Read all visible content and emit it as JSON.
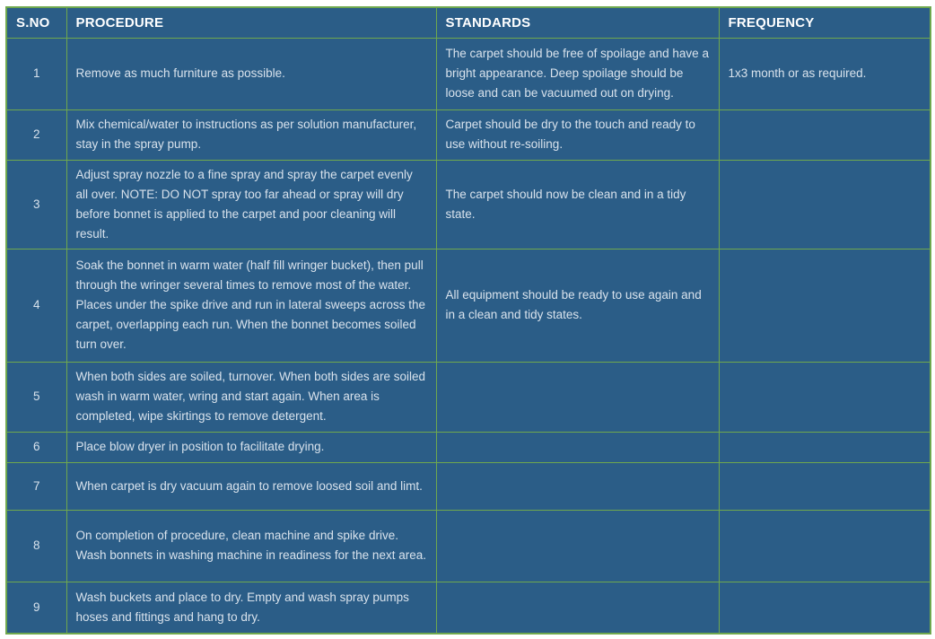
{
  "table": {
    "columns": [
      {
        "key": "sno",
        "label": "S.NO"
      },
      {
        "key": "procedure",
        "label": "PROCEDURE"
      },
      {
        "key": "standards",
        "label": "STANDARDS"
      },
      {
        "key": "frequency",
        "label": "FREQUENCY"
      }
    ],
    "rows": [
      {
        "sno": "1",
        "procedure": "Remove as much furniture as possible.",
        "standards": "The carpet should be free of spoilage and have a bright appearance. Deep spoilage should be loose and can be vacuumed out on drying.",
        "frequency": "1x3 month or as required."
      },
      {
        "sno": "2",
        "procedure": "Mix chemical/water to instructions as per solution manufacturer, stay in the spray pump.",
        "standards": "Carpet should be dry to the touch and ready to use without re-soiling.",
        "frequency": ""
      },
      {
        "sno": "3",
        "procedure": "Adjust spray nozzle to a fine spray and spray the carpet evenly all over. NOTE: DO NOT spray too far ahead or spray will dry before bonnet is applied to the carpet and poor cleaning will result.",
        "standards": "The carpet should now be clean and in a tidy state.",
        "frequency": ""
      },
      {
        "sno": "4",
        "procedure": "Soak the bonnet in warm water (half fill wringer bucket), then pull through the wringer several times to remove most of the water. Places under the spike drive and run in lateral sweeps across the carpet, overlapping each run. When the bonnet becomes soiled turn over.",
        "standards": "All equipment should be ready to use again and in a clean and tidy states.",
        "frequency": ""
      },
      {
        "sno": "5",
        "procedure": "When both sides are soiled, turnover. When both sides are soiled wash in warm water, wring and start again. When area is completed, wipe skirtings to remove detergent.",
        "standards": "",
        "frequency": ""
      },
      {
        "sno": "6",
        "procedure": "Place blow dryer in position to facilitate drying.",
        "standards": "",
        "frequency": ""
      },
      {
        "sno": "7",
        "procedure": "When carpet is dry vacuum again to remove loosed soil and limt.",
        "standards": "",
        "frequency": ""
      },
      {
        "sno": "8",
        "procedure": "On completion of procedure, clean machine and spike drive. Wash bonnets in washing machine in readiness for the next area.",
        "standards": "",
        "frequency": ""
      },
      {
        "sno": "9",
        "procedure": "Wash buckets and place to dry. Empty and wash spray pumps hoses and fittings and hang to dry.",
        "standards": "",
        "frequency": ""
      }
    ],
    "colors": {
      "cell_bg": "#2b5d87",
      "border": "#6fa84e",
      "header_text": "#ffffff",
      "body_text": "#d8e2ec",
      "page_bg": "#ffffff"
    }
  }
}
